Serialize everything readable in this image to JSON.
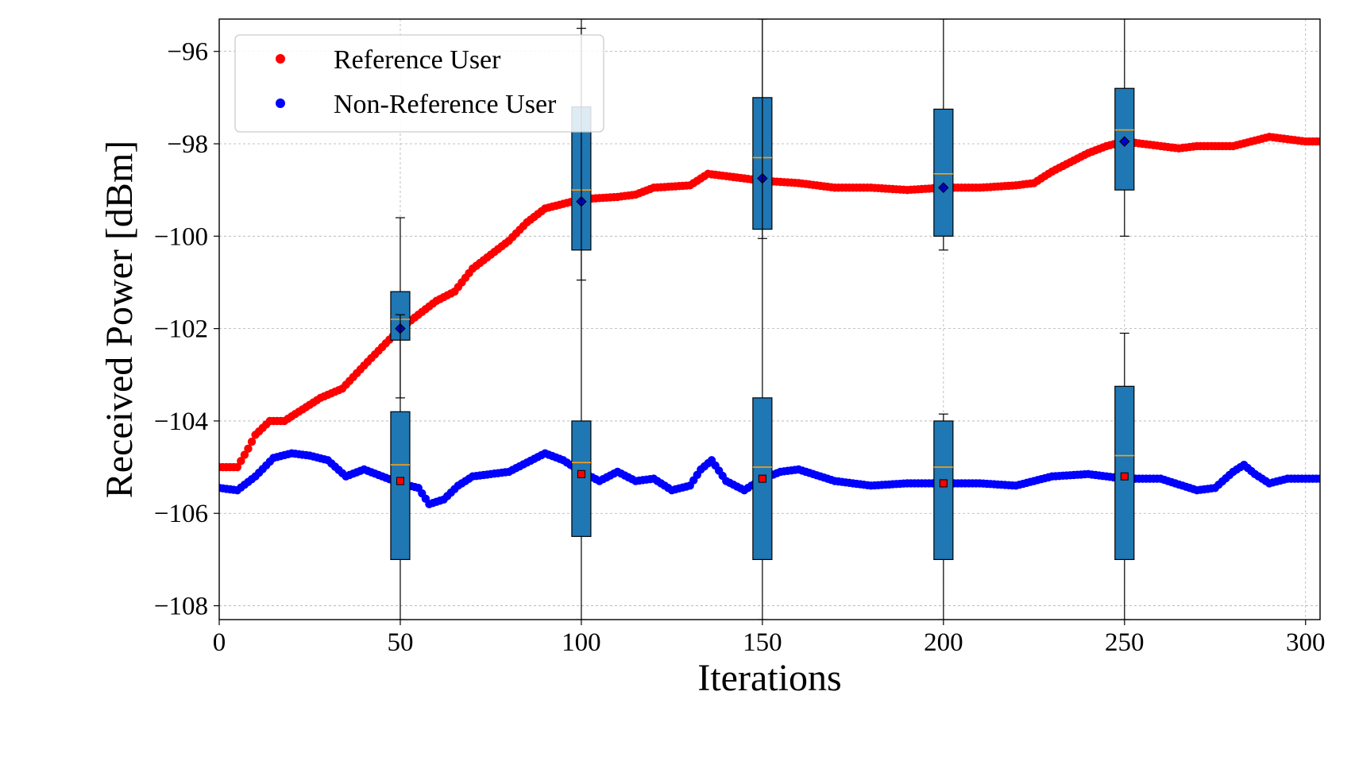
{
  "chart_data": {
    "type": "scatter",
    "xlabel": "Iterations",
    "ylabel": "Received Power [dBm]",
    "xlim": [
      0,
      304
    ],
    "ylim": [
      -108.3,
      -95.3
    ],
    "xticks": [
      0,
      50,
      100,
      150,
      200,
      250,
      300
    ],
    "yticks": [
      -108,
      -106,
      -104,
      -102,
      -100,
      -98,
      -96
    ],
    "grid": true,
    "legend": {
      "placement": "top-left"
    },
    "series": [
      {
        "name": "Reference User",
        "color": "#ff0000",
        "keypoints": [
          [
            0,
            -105.0
          ],
          [
            5,
            -105.0
          ],
          [
            8,
            -104.6
          ],
          [
            10,
            -104.3
          ],
          [
            14,
            -104.0
          ],
          [
            18,
            -104.0
          ],
          [
            22,
            -103.8
          ],
          [
            28,
            -103.5
          ],
          [
            34,
            -103.3
          ],
          [
            40,
            -102.8
          ],
          [
            45,
            -102.4
          ],
          [
            50,
            -102.0
          ],
          [
            55,
            -101.7
          ],
          [
            60,
            -101.4
          ],
          [
            65,
            -101.2
          ],
          [
            70,
            -100.7
          ],
          [
            75,
            -100.4
          ],
          [
            80,
            -100.1
          ],
          [
            85,
            -99.7
          ],
          [
            90,
            -99.4
          ],
          [
            95,
            -99.3
          ],
          [
            100,
            -99.2
          ],
          [
            110,
            -99.15
          ],
          [
            115,
            -99.1
          ],
          [
            120,
            -98.95
          ],
          [
            130,
            -98.9
          ],
          [
            135,
            -98.65
          ],
          [
            140,
            -98.7
          ],
          [
            145,
            -98.75
          ],
          [
            150,
            -98.8
          ],
          [
            160,
            -98.85
          ],
          [
            170,
            -98.95
          ],
          [
            180,
            -98.95
          ],
          [
            190,
            -99.0
          ],
          [
            200,
            -98.95
          ],
          [
            210,
            -98.95
          ],
          [
            220,
            -98.9
          ],
          [
            225,
            -98.85
          ],
          [
            230,
            -98.6
          ],
          [
            235,
            -98.4
          ],
          [
            240,
            -98.2
          ],
          [
            245,
            -98.05
          ],
          [
            250,
            -97.95
          ],
          [
            260,
            -98.05
          ],
          [
            265,
            -98.1
          ],
          [
            270,
            -98.05
          ],
          [
            280,
            -98.05
          ],
          [
            285,
            -97.95
          ],
          [
            290,
            -97.85
          ],
          [
            295,
            -97.9
          ],
          [
            300,
            -97.95
          ],
          [
            304,
            -97.95
          ]
        ]
      },
      {
        "name": "Non-Reference User",
        "color": "#0000ff",
        "keypoints": [
          [
            0,
            -105.45
          ],
          [
            5,
            -105.5
          ],
          [
            10,
            -105.2
          ],
          [
            15,
            -104.8
          ],
          [
            20,
            -104.7
          ],
          [
            25,
            -104.75
          ],
          [
            30,
            -104.85
          ],
          [
            35,
            -105.2
          ],
          [
            40,
            -105.05
          ],
          [
            45,
            -105.2
          ],
          [
            50,
            -105.35
          ],
          [
            55,
            -105.45
          ],
          [
            58,
            -105.8
          ],
          [
            62,
            -105.7
          ],
          [
            66,
            -105.4
          ],
          [
            70,
            -105.2
          ],
          [
            75,
            -105.15
          ],
          [
            80,
            -105.1
          ],
          [
            85,
            -104.9
          ],
          [
            90,
            -104.7
          ],
          [
            95,
            -104.85
          ],
          [
            100,
            -105.1
          ],
          [
            105,
            -105.3
          ],
          [
            110,
            -105.1
          ],
          [
            115,
            -105.3
          ],
          [
            120,
            -105.25
          ],
          [
            125,
            -105.5
          ],
          [
            130,
            -105.4
          ],
          [
            133,
            -105.05
          ],
          [
            136,
            -104.85
          ],
          [
            140,
            -105.3
          ],
          [
            145,
            -105.5
          ],
          [
            150,
            -105.25
          ],
          [
            155,
            -105.1
          ],
          [
            160,
            -105.05
          ],
          [
            170,
            -105.3
          ],
          [
            180,
            -105.4
          ],
          [
            190,
            -105.35
          ],
          [
            200,
            -105.35
          ],
          [
            210,
            -105.35
          ],
          [
            220,
            -105.4
          ],
          [
            225,
            -105.3
          ],
          [
            230,
            -105.2
          ],
          [
            240,
            -105.15
          ],
          [
            245,
            -105.2
          ],
          [
            250,
            -105.25
          ],
          [
            260,
            -105.25
          ],
          [
            270,
            -105.5
          ],
          [
            275,
            -105.45
          ],
          [
            280,
            -105.1
          ],
          [
            283,
            -104.95
          ],
          [
            286,
            -105.15
          ],
          [
            290,
            -105.35
          ],
          [
            295,
            -105.25
          ],
          [
            300,
            -105.25
          ],
          [
            304,
            -105.25
          ]
        ]
      }
    ],
    "boxplots": [
      {
        "group": "Reference User",
        "color": "#1f77b4",
        "marker": "diamond",
        "marker_color": "#0000cc",
        "boxes": [
          {
            "x": 50,
            "whisker_low": -103.5,
            "q1": -102.25,
            "median": -101.8,
            "q3": -101.2,
            "whisker_high": -99.6,
            "mean": -102.0
          },
          {
            "x": 100,
            "whisker_low": -100.95,
            "q1": -100.3,
            "median": -99.0,
            "q3": -97.2,
            "whisker_high": -95.5,
            "mean": -99.25
          },
          {
            "x": 150,
            "whisker_low": -100.05,
            "q1": -99.85,
            "median": -98.3,
            "q3": -97.0,
            "whisker_high": -95.3,
            "mean": -98.75
          },
          {
            "x": 200,
            "whisker_low": -100.3,
            "q1": -100.0,
            "median": -98.65,
            "q3": -97.25,
            "whisker_high": -95.3,
            "mean": -98.95
          },
          {
            "x": 250,
            "whisker_low": -100.0,
            "q1": -99.0,
            "median": -97.7,
            "q3": -96.8,
            "whisker_high": -95.3,
            "mean": -97.95
          }
        ]
      },
      {
        "group": "Non-Reference User",
        "color": "#1f77b4",
        "marker": "square",
        "marker_color": "#ff0000",
        "boxes": [
          {
            "x": 50,
            "whisker_low": -108.3,
            "q1": -107.0,
            "median": -104.95,
            "q3": -103.8,
            "whisker_high": -101.7,
            "mean": -105.3
          },
          {
            "x": 100,
            "whisker_low": -108.3,
            "q1": -106.5,
            "median": -104.9,
            "q3": -104.0,
            "whisker_high": -95.3,
            "mean": -105.15
          },
          {
            "x": 150,
            "whisker_low": -108.3,
            "q1": -107.0,
            "median": -105.0,
            "q3": -103.5,
            "whisker_high": -95.3,
            "mean": -105.25
          },
          {
            "x": 200,
            "whisker_low": -108.3,
            "q1": -107.0,
            "median": -105.0,
            "q3": -104.0,
            "whisker_high": -103.85,
            "mean": -105.35
          },
          {
            "x": 250,
            "whisker_low": -108.3,
            "q1": -107.0,
            "median": -104.75,
            "q3": -103.25,
            "whisker_high": -102.1,
            "mean": -105.2
          }
        ]
      }
    ]
  }
}
